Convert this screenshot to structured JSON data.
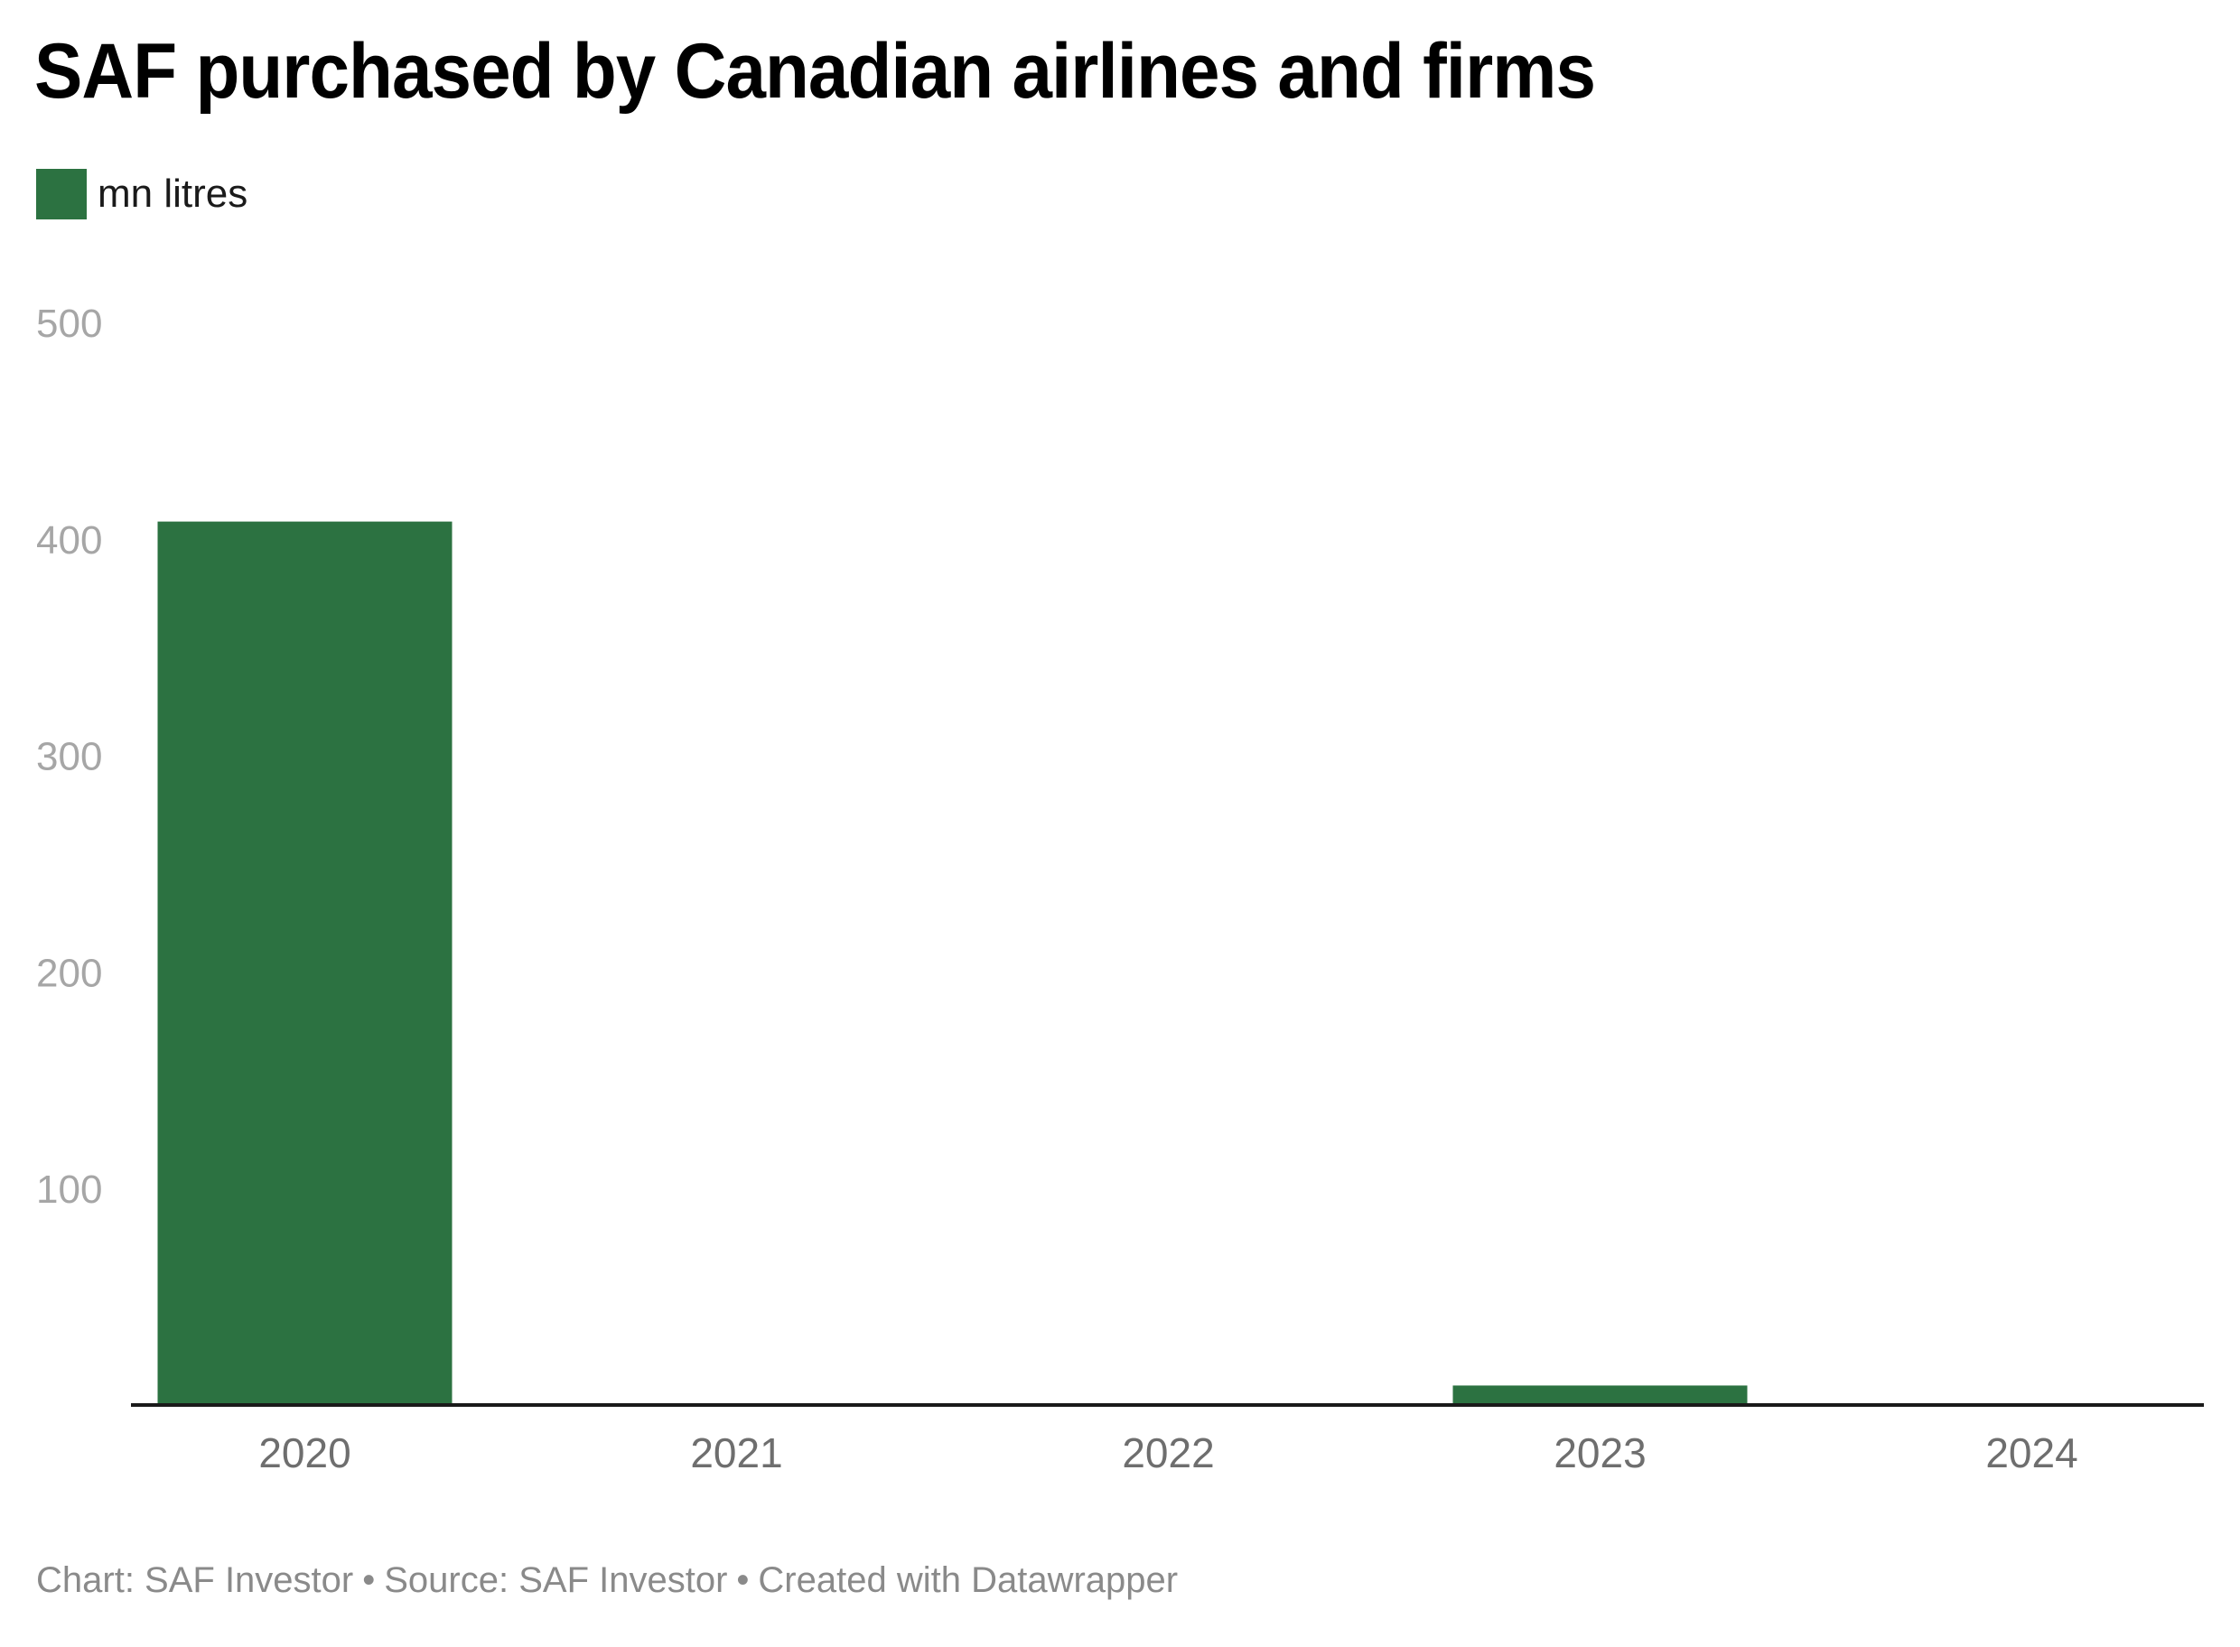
{
  "colors": {
    "bar": "#2c7241",
    "axis": "#1a1a1a",
    "ytick": "#a6a6a6",
    "xtick": "#6e6e6e",
    "footer": "#8a8a8a"
  },
  "footer": {
    "chart_credit": "Chart: SAF Investor",
    "source": "Source: SAF Investor",
    "tool": "Created with Datawrapper",
    "separator": "•"
  },
  "chart_data": {
    "type": "bar",
    "title": "SAF purchased by Canadian airlines and firms",
    "legend": [
      {
        "label": "mn litres",
        "color": "#2c7241"
      }
    ],
    "legend_position": "top-left",
    "categories": [
      "2020",
      "2021",
      "2022",
      "2023",
      "2024"
    ],
    "series": [
      {
        "name": "mn litres",
        "values": [
          408,
          0,
          0,
          9,
          0
        ]
      }
    ],
    "xlabel": "",
    "ylabel": "",
    "ylim": [
      0,
      500
    ],
    "yticks": [
      100,
      200,
      300,
      400,
      500
    ],
    "grid": false
  }
}
